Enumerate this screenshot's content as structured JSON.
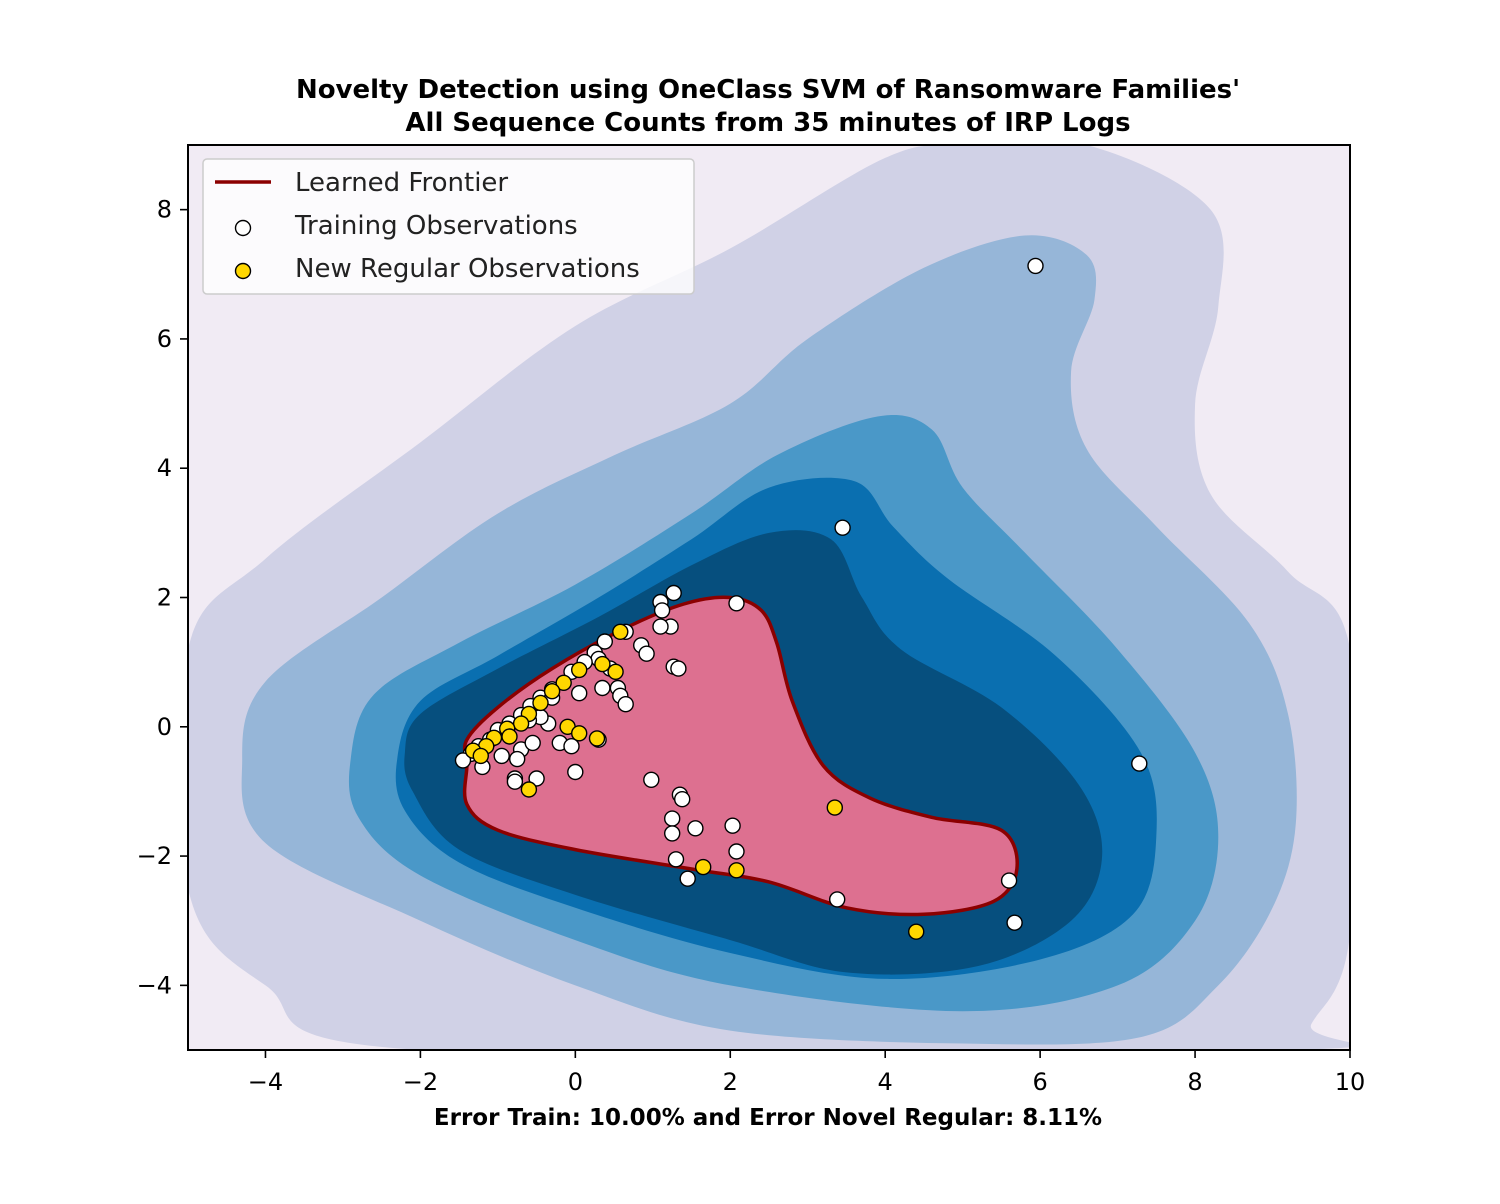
{
  "chart_data": {
    "type": "scatter",
    "title": "Novelty Detection using OneClass SVM of Ransomware Families'\nAll Sequence Counts from 35 minutes of IRP Logs",
    "xlabel": "Error Train: 10.00% and Error Novel Regular: 8.11%",
    "ylabel": "",
    "xlim": [
      -5,
      10
    ],
    "ylim": [
      -5,
      9
    ],
    "xticks": [
      -4,
      -2,
      0,
      2,
      4,
      6,
      8,
      10
    ],
    "yticks": [
      -4,
      -2,
      0,
      2,
      4,
      6,
      8
    ],
    "grid": false,
    "legend": {
      "placement": "top-left",
      "entries": [
        {
          "label": "Learned Frontier",
          "kind": "line",
          "color": "#8b0000"
        },
        {
          "label": "Training Observations",
          "kind": "marker",
          "color": "#ffffff"
        },
        {
          "label": "New Regular Observations",
          "kind": "marker",
          "color": "#ffd700"
        }
      ]
    },
    "colors": {
      "background": "#f1ebf4",
      "level1": "#d0d1e6",
      "level2": "#96b6d8",
      "level3": "#4a98c8",
      "level4": "#0a6fb0",
      "level5": "#064f7e",
      "frontier_fill": "#dd7090",
      "frontier_line": "#8b0000",
      "training_marker": "#ffffff",
      "novel_marker": "#ffd700"
    },
    "decision_regions": [
      {
        "level": 1,
        "points": [
          [
            -5,
            1.2
          ],
          [
            -4,
            2.6
          ],
          [
            -2,
            4.4
          ],
          [
            0,
            6.2
          ],
          [
            2,
            7.4
          ],
          [
            4,
            8.8
          ],
          [
            5,
            9
          ],
          [
            6.6,
            9
          ],
          [
            8.2,
            8
          ],
          [
            8.3,
            6.5
          ],
          [
            8.0,
            5.0
          ],
          [
            8.2,
            3.6
          ],
          [
            9.2,
            2.4
          ],
          [
            10,
            1.2
          ],
          [
            10,
            -3.2
          ],
          [
            9.5,
            -4.6
          ],
          [
            9.2,
            -5
          ],
          [
            -2,
            -5
          ],
          [
            -4,
            -4
          ],
          [
            -5,
            -2.5
          ]
        ]
      },
      {
        "level": 2,
        "points": [
          [
            -4.3,
            -0.5
          ],
          [
            -4,
            0.7
          ],
          [
            -2.5,
            2.0
          ],
          [
            -1,
            3.3
          ],
          [
            0.5,
            4.2
          ],
          [
            2,
            5.0
          ],
          [
            3,
            6.0
          ],
          [
            4.5,
            7.1
          ],
          [
            5.8,
            7.6
          ],
          [
            6.6,
            7.3
          ],
          [
            6.7,
            6.6
          ],
          [
            6.4,
            5.5
          ],
          [
            6.6,
            4.3
          ],
          [
            7.5,
            3.1
          ],
          [
            8.7,
            1.6
          ],
          [
            9.2,
            0.2
          ],
          [
            9.3,
            -1.5
          ],
          [
            9.0,
            -2.8
          ],
          [
            8.3,
            -4
          ],
          [
            7.3,
            -4.8
          ],
          [
            5,
            -4.9
          ],
          [
            2,
            -4.7
          ],
          [
            0,
            -4
          ],
          [
            -2,
            -3
          ],
          [
            -4,
            -1.8
          ]
        ]
      },
      {
        "level": 3,
        "points": [
          [
            -2.9,
            -0.5
          ],
          [
            -2.6,
            0.5
          ],
          [
            -1.5,
            1.3
          ],
          [
            0,
            2.2
          ],
          [
            1.5,
            3.3
          ],
          [
            2.6,
            4.2
          ],
          [
            3.9,
            4.8
          ],
          [
            4.6,
            4.6
          ],
          [
            5,
            3.7
          ],
          [
            5.8,
            2.7
          ],
          [
            7.0,
            1.2
          ],
          [
            8.0,
            -0.4
          ],
          [
            8.3,
            -1.7
          ],
          [
            8.0,
            -3.0
          ],
          [
            7.0,
            -4.0
          ],
          [
            5,
            -4.4
          ],
          [
            2,
            -4.0
          ],
          [
            0,
            -3.3
          ],
          [
            -2,
            -2.3
          ],
          [
            -2.8,
            -1.4
          ]
        ]
      },
      {
        "level": 4,
        "points": [
          [
            -2.3,
            -0.5
          ],
          [
            -2,
            0.4
          ],
          [
            -1,
            1.1
          ],
          [
            0.3,
            2.0
          ],
          [
            1.5,
            2.9
          ],
          [
            2.5,
            3.7
          ],
          [
            3.6,
            3.8
          ],
          [
            4.1,
            3.1
          ],
          [
            4.8,
            2.3
          ],
          [
            6.2,
            1.1
          ],
          [
            7.3,
            -0.4
          ],
          [
            7.5,
            -1.7
          ],
          [
            7.2,
            -2.9
          ],
          [
            6,
            -3.6
          ],
          [
            4,
            -3.9
          ],
          [
            2,
            -3.5
          ],
          [
            0,
            -2.8
          ],
          [
            -1.5,
            -2.1
          ],
          [
            -2.2,
            -1.3
          ]
        ]
      },
      {
        "level": 5,
        "points": [
          [
            -2.2,
            -0.4
          ],
          [
            -2,
            0.2
          ],
          [
            -1,
            0.9
          ],
          [
            0.3,
            1.7
          ],
          [
            1.5,
            2.5
          ],
          [
            2.5,
            3.0
          ],
          [
            3.3,
            2.9
          ],
          [
            3.7,
            2.0
          ],
          [
            4.2,
            1.2
          ],
          [
            5.5,
            0.3
          ],
          [
            6.5,
            -0.9
          ],
          [
            6.8,
            -2.0
          ],
          [
            6.4,
            -3.0
          ],
          [
            5.2,
            -3.7
          ],
          [
            3.5,
            -3.8
          ],
          [
            2,
            -3.3
          ],
          [
            0,
            -2.6
          ],
          [
            -1.5,
            -1.9
          ],
          [
            -2.1,
            -1.0
          ]
        ]
      },
      {
        "level": 6,
        "points": [
          [
            -1.4,
            -0.2
          ],
          [
            -1.0,
            0.3
          ],
          [
            -0.3,
            0.9
          ],
          [
            0.6,
            1.5
          ],
          [
            1.4,
            1.9
          ],
          [
            2.0,
            2.0
          ],
          [
            2.4,
            1.8
          ],
          [
            2.6,
            1.3
          ],
          [
            2.8,
            0.4
          ],
          [
            3.2,
            -0.6
          ],
          [
            3.8,
            -1.1
          ],
          [
            4.6,
            -1.4
          ],
          [
            5.5,
            -1.6
          ],
          [
            5.7,
            -2.2
          ],
          [
            5.4,
            -2.7
          ],
          [
            4.5,
            -2.9
          ],
          [
            3.5,
            -2.8
          ],
          [
            2.5,
            -2.4
          ],
          [
            1.5,
            -2.2
          ],
          [
            0,
            -1.9
          ],
          [
            -1.0,
            -1.6
          ],
          [
            -1.4,
            -1.2
          ],
          [
            -1.4,
            -0.6
          ]
        ]
      }
    ],
    "series": [
      {
        "name": "Training Observations",
        "color": "#ffffff",
        "points": [
          [
            5.94,
            7.13
          ],
          [
            3.45,
            3.08
          ],
          [
            7.28,
            -0.57
          ],
          [
            1.27,
            2.07
          ],
          [
            2.08,
            1.91
          ],
          [
            1.1,
            1.93
          ],
          [
            1.12,
            1.8
          ],
          [
            1.23,
            1.55
          ],
          [
            1.1,
            1.55
          ],
          [
            0.65,
            1.47
          ],
          [
            0.85,
            1.26
          ],
          [
            0.92,
            1.13
          ],
          [
            0.38,
            1.32
          ],
          [
            0.25,
            1.15
          ],
          [
            0.3,
            1.05
          ],
          [
            0.45,
            0.9
          ],
          [
            0.12,
            1.0
          ],
          [
            -0.05,
            0.85
          ],
          [
            1.27,
            0.93
          ],
          [
            1.33,
            0.9
          ],
          [
            0.55,
            0.6
          ],
          [
            0.35,
            0.6
          ],
          [
            0.05,
            0.52
          ],
          [
            -0.3,
            0.58
          ],
          [
            -0.45,
            0.45
          ],
          [
            -0.58,
            0.32
          ],
          [
            -0.7,
            0.18
          ],
          [
            -0.85,
            0.05
          ],
          [
            -1.0,
            -0.05
          ],
          [
            -1.1,
            -0.2
          ],
          [
            -1.25,
            -0.3
          ],
          [
            -1.35,
            -0.42
          ],
          [
            -1.45,
            -0.52
          ],
          [
            -1.2,
            -0.62
          ],
          [
            -0.95,
            -0.45
          ],
          [
            -0.7,
            -0.35
          ],
          [
            -0.55,
            -0.25
          ],
          [
            -0.35,
            0.05
          ],
          [
            -0.2,
            -0.25
          ],
          [
            -0.05,
            -0.3
          ],
          [
            0.3,
            -0.2
          ],
          [
            0.0,
            -0.7
          ],
          [
            0.58,
            0.48
          ],
          [
            0.65,
            0.35
          ],
          [
            -0.45,
            0.15
          ],
          [
            -0.75,
            -0.5
          ],
          [
            -0.78,
            -0.8
          ],
          [
            -0.78,
            -0.85
          ],
          [
            -0.5,
            -0.8
          ],
          [
            -0.3,
            0.45
          ],
          [
            -0.6,
            0.1
          ],
          [
            0.98,
            -0.82
          ],
          [
            1.35,
            -1.05
          ],
          [
            1.38,
            -1.12
          ],
          [
            1.25,
            -1.42
          ],
          [
            1.25,
            -1.65
          ],
          [
            1.55,
            -1.57
          ],
          [
            2.03,
            -1.53
          ],
          [
            2.08,
            -1.93
          ],
          [
            1.3,
            -2.05
          ],
          [
            1.45,
            -2.35
          ],
          [
            3.38,
            -2.67
          ],
          [
            5.6,
            -2.38
          ],
          [
            5.67,
            -3.03
          ]
        ]
      },
      {
        "name": "New Regular Observations",
        "color": "#ffd700",
        "points": [
          [
            0.58,
            1.47
          ],
          [
            0.35,
            0.97
          ],
          [
            0.52,
            0.85
          ],
          [
            0.05,
            0.88
          ],
          [
            -0.15,
            0.68
          ],
          [
            -0.3,
            0.55
          ],
          [
            -0.45,
            0.37
          ],
          [
            -0.6,
            0.2
          ],
          [
            -0.7,
            0.05
          ],
          [
            -0.88,
            -0.03
          ],
          [
            -0.85,
            -0.15
          ],
          [
            -1.05,
            -0.17
          ],
          [
            -1.15,
            -0.3
          ],
          [
            -1.32,
            -0.37
          ],
          [
            -1.22,
            -0.45
          ],
          [
            -0.1,
            0.0
          ],
          [
            0.05,
            -0.1
          ],
          [
            0.28,
            -0.18
          ],
          [
            -0.6,
            -0.97
          ],
          [
            3.35,
            -1.25
          ],
          [
            1.65,
            -2.17
          ],
          [
            2.08,
            -2.22
          ],
          [
            4.4,
            -3.17
          ]
        ]
      }
    ]
  }
}
